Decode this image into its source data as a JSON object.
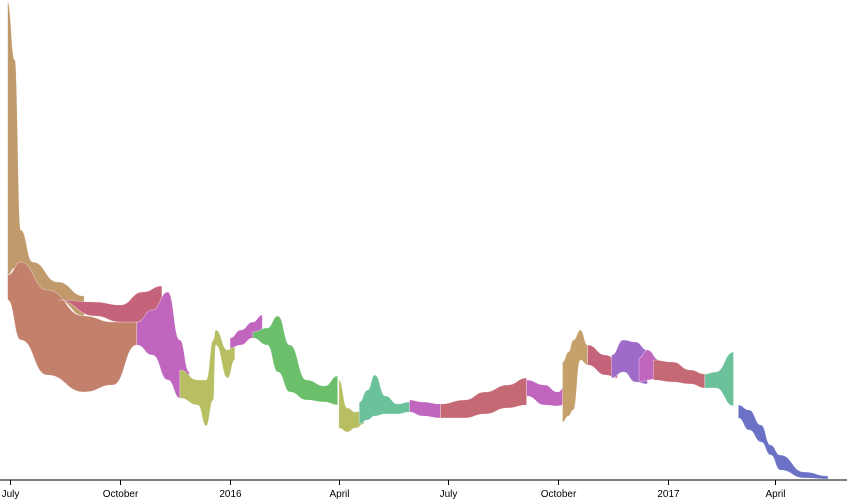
{
  "chart_data": {
    "type": "area",
    "subtype": "streamgraph",
    "title": "",
    "xlabel": "",
    "ylabel": "",
    "x_axis": {
      "scale": "time",
      "domain": [
        "2015-07-01",
        "2017-05-15"
      ],
      "ticks": [
        {
          "date": "2015-07-01",
          "label": "July"
        },
        {
          "date": "2015-10-01",
          "label": "October"
        },
        {
          "date": "2016-01-01",
          "label": "2016"
        },
        {
          "date": "2016-04-01",
          "label": "April"
        },
        {
          "date": "2016-07-01",
          "label": "July"
        },
        {
          "date": "2016-10-01",
          "label": "October"
        },
        {
          "date": "2017-01-01",
          "label": "2017"
        },
        {
          "date": "2017-04-01",
          "label": "April"
        }
      ]
    },
    "grid": false,
    "legend": "none",
    "palette": [
      "#c09a6b",
      "#c3806b",
      "#c5637a",
      "#c066bf",
      "#b8bf63",
      "#6bbf6b",
      "#6bc29a",
      "#c56a75",
      "#c5a06b",
      "#9e6bc9",
      "#6b72c5"
    ],
    "bands": [
      {
        "color": "#c09a6b",
        "points": [
          [
            "2015-06-29",
            2,
            275
          ],
          [
            "2015-07-05",
            60,
            268
          ],
          [
            "2015-07-10",
            230,
            262
          ],
          [
            "2015-07-20",
            262,
            286
          ],
          [
            "2015-08-10",
            282,
            300
          ],
          [
            "2015-09-01",
            296,
            316
          ]
        ]
      },
      {
        "color": "#c3806b",
        "points": [
          [
            "2015-06-29",
            275,
            300
          ],
          [
            "2015-07-10",
            262,
            340
          ],
          [
            "2015-08-01",
            290,
            375
          ],
          [
            "2015-09-01",
            316,
            392
          ],
          [
            "2015-09-25",
            322,
            385
          ],
          [
            "2015-10-15",
            322,
            345
          ]
        ]
      },
      {
        "color": "#c5637a",
        "points": [
          [
            "2015-08-10",
            300,
            300
          ],
          [
            "2015-09-10",
            302,
            316
          ],
          [
            "2015-10-01",
            305,
            322
          ],
          [
            "2015-10-20",
            292,
            322
          ],
          [
            "2015-11-05",
            286,
            310
          ]
        ]
      },
      {
        "color": "#c066bf",
        "points": [
          [
            "2015-10-15",
            322,
            345
          ],
          [
            "2015-10-28",
            310,
            355
          ],
          [
            "2015-11-10",
            292,
            380
          ],
          [
            "2015-11-20",
            340,
            398
          ],
          [
            "2015-11-28",
            372,
            396
          ]
        ]
      },
      {
        "color": "#b8bf63",
        "points": [
          [
            "2015-11-20",
            370,
            398
          ],
          [
            "2015-12-05",
            380,
            405
          ],
          [
            "2015-12-12",
            380,
            426
          ],
          [
            "2015-12-18",
            340,
            400
          ],
          [
            "2015-12-20",
            330,
            345
          ],
          [
            "2015-12-30",
            350,
            378
          ],
          [
            "2016-01-05",
            344,
            360
          ]
        ]
      },
      {
        "color": "#c066bf",
        "points": [
          [
            "2016-01-01",
            338,
            348
          ],
          [
            "2016-01-10",
            330,
            345
          ],
          [
            "2016-01-20",
            322,
            338
          ],
          [
            "2016-01-28",
            315,
            330
          ]
        ]
      },
      {
        "color": "#6bbf6b",
        "points": [
          [
            "2016-01-20",
            332,
            338
          ],
          [
            "2016-02-01",
            328,
            345
          ],
          [
            "2016-02-10",
            316,
            372
          ],
          [
            "2016-02-20",
            345,
            392
          ],
          [
            "2016-03-05",
            380,
            400
          ],
          [
            "2016-03-20",
            386,
            402
          ],
          [
            "2016-03-31",
            376,
            405
          ]
        ]
      },
      {
        "color": "#b8bf63",
        "points": [
          [
            "2016-04-01",
            380,
            428
          ],
          [
            "2016-04-08",
            408,
            432
          ],
          [
            "2016-04-15",
            412,
            428
          ],
          [
            "2016-04-22",
            410,
            424
          ]
        ]
      },
      {
        "color": "#6bc29a",
        "points": [
          [
            "2016-04-18",
            402,
            424
          ],
          [
            "2016-04-25",
            390,
            420
          ],
          [
            "2016-05-01",
            375,
            416
          ],
          [
            "2016-05-10",
            396,
            414
          ],
          [
            "2016-05-20",
            404,
            414
          ],
          [
            "2016-05-30",
            402,
            412
          ]
        ]
      },
      {
        "color": "#c066bf",
        "points": [
          [
            "2016-05-30",
            400,
            412
          ],
          [
            "2016-06-10",
            402,
            416
          ],
          [
            "2016-06-25",
            404,
            418
          ]
        ]
      },
      {
        "color": "#c56a75",
        "points": [
          [
            "2016-06-25",
            404,
            418
          ],
          [
            "2016-07-15",
            400,
            418
          ],
          [
            "2016-08-01",
            392,
            414
          ],
          [
            "2016-08-20",
            385,
            408
          ],
          [
            "2016-09-05",
            378,
            405
          ]
        ]
      },
      {
        "color": "#c066bf",
        "points": [
          [
            "2016-09-05",
            380,
            396
          ],
          [
            "2016-09-20",
            385,
            405
          ],
          [
            "2016-10-01",
            392,
            406
          ],
          [
            "2016-10-08",
            385,
            404
          ]
        ]
      },
      {
        "color": "#c5a06b",
        "points": [
          [
            "2016-10-05",
            362,
            422
          ],
          [
            "2016-10-10",
            352,
            416
          ],
          [
            "2016-10-14",
            340,
            410
          ],
          [
            "2016-10-20",
            330,
            360
          ],
          [
            "2016-10-26",
            345,
            365
          ]
        ]
      },
      {
        "color": "#c5637a",
        "points": [
          [
            "2016-10-26",
            345,
            365
          ],
          [
            "2016-11-10",
            355,
            375
          ],
          [
            "2016-11-20",
            360,
            378
          ]
        ]
      },
      {
        "color": "#9e6bc9",
        "points": [
          [
            "2016-11-15",
            355,
            378
          ],
          [
            "2016-11-25",
            340,
            372
          ],
          [
            "2016-12-05",
            342,
            382
          ],
          [
            "2016-12-15",
            350,
            384
          ]
        ]
      },
      {
        "color": "#c066bf",
        "points": [
          [
            "2016-12-08",
            358,
            382
          ],
          [
            "2016-12-15",
            350,
            380
          ],
          [
            "2016-12-25",
            360,
            378
          ]
        ]
      },
      {
        "color": "#c56a75",
        "points": [
          [
            "2016-12-20",
            360,
            380
          ],
          [
            "2017-01-05",
            362,
            382
          ],
          [
            "2017-01-20",
            370,
            384
          ],
          [
            "2017-02-01",
            374,
            388
          ]
        ]
      },
      {
        "color": "#6bc29a",
        "points": [
          [
            "2017-02-01",
            374,
            388
          ],
          [
            "2017-02-10",
            372,
            388
          ],
          [
            "2017-02-25",
            352,
            406
          ]
        ]
      },
      {
        "color": "#6b72c5",
        "points": [
          [
            "2017-03-01",
            405,
            418
          ],
          [
            "2017-03-10",
            410,
            430
          ],
          [
            "2017-03-20",
            425,
            442
          ],
          [
            "2017-03-28",
            445,
            455
          ],
          [
            "2017-04-05",
            455,
            470
          ],
          [
            "2017-04-25",
            472,
            478
          ],
          [
            "2017-05-15",
            476,
            479
          ]
        ]
      }
    ]
  }
}
